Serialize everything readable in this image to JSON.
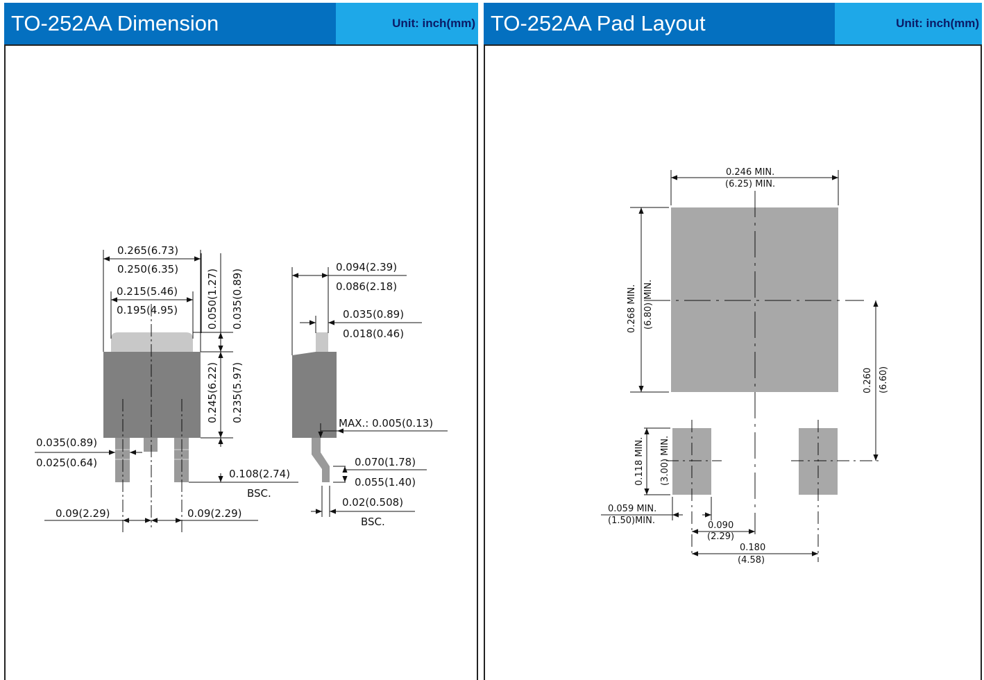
{
  "left": {
    "title": "TO-252AA Dimension",
    "unit": "Unit: inch(mm)",
    "labels": {
      "w_max": "0.265(6.73)",
      "w_min": "0.250(6.35)",
      "tab_max": "0.215(5.46)",
      "tab_min": "0.195(4.95)",
      "tabh_max": "0.050(1.27)",
      "tabh_min": "0.035(0.89)",
      "body_max": "0.245(6.22)",
      "body_min": "0.235(5.97)",
      "lead_max": "0.035(0.89)",
      "lead_min": "0.025(0.64)",
      "leadlen": "0.108(2.74)",
      "leadlen_bsc": "BSC.",
      "pitch_l": "0.09(2.29)",
      "pitch_r": "0.09(2.29)",
      "thick_max": "0.094(2.39)",
      "thick_min": "0.086(2.18)",
      "fin_max": "0.035(0.89)",
      "fin_min": "0.018(0.46)",
      "standoff": "MAX.: 0.005(0.13)",
      "foot_max": "0.070(1.78)",
      "foot_min": "0.055(1.40)",
      "leadthk": "0.02(0.508)",
      "leadthk_bsc": "BSC."
    }
  },
  "right": {
    "title": "TO-252AA Pad Layout",
    "unit": "Unit: inch(mm)",
    "labels": {
      "padw_in": "0.246 MIN.",
      "padw_mm": "(6.25) MIN.",
      "padh_in": "0.268 MIN.",
      "padh_mm": "(6.80) MIN.",
      "span_in": "0.260",
      "span_mm": "(6.60)",
      "smallh_in": "0.118 MIN.",
      "smallh_mm": "(3.00) MIN.",
      "smallw_in": "0.059 MIN.",
      "smallw_mm": "(1.50)MIN.",
      "half_in": "0.090",
      "half_mm": "(2.29)",
      "full_in": "0.180",
      "full_mm": "(4.58)"
    }
  },
  "colors": {
    "header_dark": "#0470c0",
    "header_light": "#1ea8e8",
    "body": "#808080",
    "tab": "#c8c8c8",
    "pad": "#a8a8a8"
  }
}
